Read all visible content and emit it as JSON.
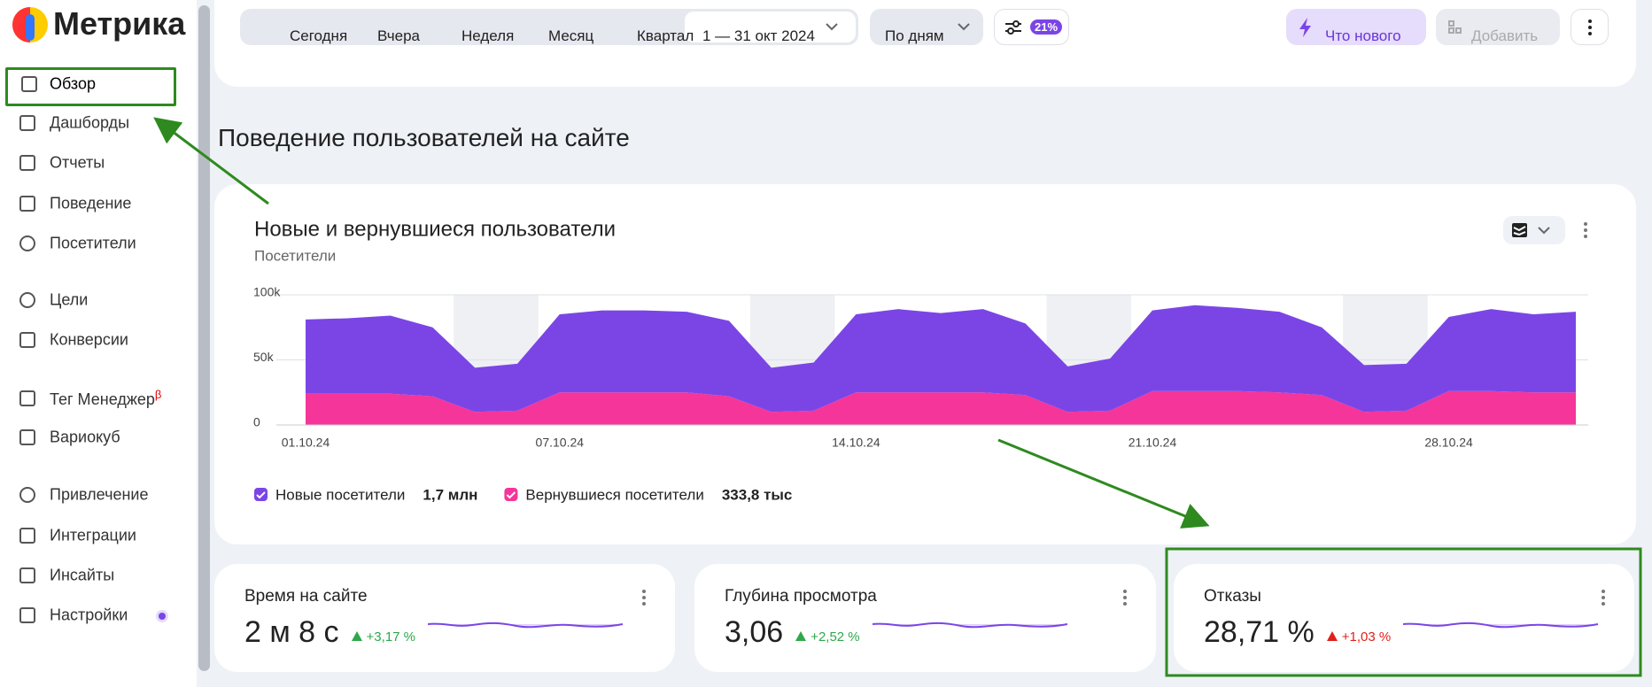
{
  "sidebar": {
    "logo": "Метрика",
    "items": [
      "Обзор",
      "Дашборды",
      "Отчеты",
      "Поведение",
      "Посетители",
      "Цели",
      "Конверсии",
      "Тег Менеджер",
      "Вариокуб",
      "Привлечение",
      "Интеграции",
      "Инсайты",
      "Настройки"
    ],
    "beta": "β"
  },
  "toolbar": {
    "periods": [
      "Сегодня",
      "Вчера",
      "Неделя",
      "Месяц",
      "Квартал"
    ],
    "date_range": "1 — 31 окт 2024",
    "grouping": "По дням",
    "filter_badge": "21%",
    "whats_new": "Что нового",
    "add": "Добавить"
  },
  "section_title": "Поведение пользователей на сайте",
  "chart_data": {
    "type": "stacked_area",
    "title": "Новые и вернувшиеся пользователи",
    "subtitle": "Посетители",
    "categories": [
      "01.10.24",
      null,
      null,
      null,
      null,
      null,
      "07.10.24",
      null,
      null,
      null,
      null,
      null,
      null,
      "14.10.24",
      null,
      null,
      null,
      null,
      null,
      null,
      "21.10.24",
      null,
      null,
      null,
      null,
      null,
      null,
      "28.10.24",
      null,
      null,
      null
    ],
    "series": [
      {
        "name": "Новые посетители",
        "total": "1,7 млн",
        "color": "#7b45e6",
        "values": [
          57000,
          58000,
          60000,
          53000,
          34000,
          36000,
          60000,
          63000,
          63000,
          62000,
          58000,
          34000,
          37000,
          60000,
          64000,
          61000,
          64000,
          55000,
          35000,
          40000,
          62000,
          66000,
          64000,
          62000,
          52000,
          36000,
          36000,
          57000,
          63000,
          60000,
          62000
        ]
      },
      {
        "name": "Вернувшиеся посетители",
        "total": "333,8 тыс",
        "color": "#f5359a",
        "values": [
          24000,
          24000,
          24000,
          22000,
          10000,
          11000,
          25000,
          25000,
          25000,
          25000,
          22000,
          10000,
          11000,
          25000,
          25000,
          25000,
          25000,
          23000,
          10000,
          11000,
          26000,
          26000,
          26000,
          25000,
          23000,
          10000,
          11000,
          26000,
          26000,
          25000,
          25000
        ]
      }
    ],
    "ylim": [
      0,
      100000
    ],
    "yticks": [
      0,
      {
        "value": 50000,
        "label": "50k"
      },
      {
        "value": 100000,
        "label": "100k"
      }
    ],
    "grid": true
  },
  "metrics": [
    {
      "title": "Время на сайте",
      "value": "2 м 8 с",
      "change": "+3,17 %",
      "direction": "up"
    },
    {
      "title": "Глубина просмотра",
      "value": "3,06",
      "change": "+2,52 %",
      "direction": "up"
    },
    {
      "title": "Отказы",
      "value": "28,71 %",
      "change": "+1,03 %",
      "direction": "up_bad"
    }
  ]
}
